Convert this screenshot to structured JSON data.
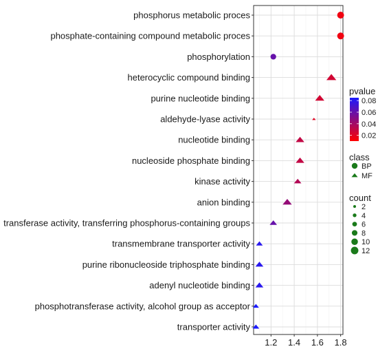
{
  "chart_data": {
    "type": "scatter",
    "title": "",
    "xlabel": "",
    "ylabel": "",
    "xlim": [
      1.05,
      1.82
    ],
    "x_ticks": [
      1.2,
      1.4,
      1.6,
      1.8
    ],
    "x_tick_labels": [
      "1.2",
      "1.4",
      "1.6",
      "1.8"
    ],
    "grid": true,
    "legend_position": "right",
    "categories": [
      "phosphorus metabolic proces",
      "phosphate-containing compound metabolic proces",
      "phosphorylation",
      "heterocyclic compound binding",
      "purine nucleotide binding",
      "aldehyde-lyase activity",
      "nucleotide binding",
      "nucleoside phosphate binding",
      "kinase activity",
      "anion binding",
      "transferase activity, transferring phosphorus-containing groups",
      "transmembrane transporter activity",
      "purine ribonucleoside triphosphate binding",
      "adenyl nucleotide binding",
      "phosphotransferase activity, alcohol group as acceptor",
      "transporter activity"
    ],
    "points": [
      {
        "term": "phosphorus metabolic proces",
        "x": 1.8,
        "pvalue": 0.015,
        "class": "BP",
        "count": 8
      },
      {
        "term": "phosphate-containing compound metabolic proces",
        "x": 1.8,
        "pvalue": 0.015,
        "class": "BP",
        "count": 8
      },
      {
        "term": "phosphorylation",
        "x": 1.22,
        "pvalue": 0.06,
        "class": "BP",
        "count": 6
      },
      {
        "term": "heterocyclic compound binding",
        "x": 1.72,
        "pvalue": 0.025,
        "class": "MF",
        "count": 12
      },
      {
        "term": "purine nucleotide binding",
        "x": 1.62,
        "pvalue": 0.025,
        "class": "MF",
        "count": 11
      },
      {
        "term": "aldehyde-lyase activity",
        "x": 1.57,
        "pvalue": 0.02,
        "class": "MF",
        "count": 2
      },
      {
        "term": "nucleotide binding",
        "x": 1.45,
        "pvalue": 0.03,
        "class": "MF",
        "count": 10
      },
      {
        "term": "nucleoside phosphate binding",
        "x": 1.45,
        "pvalue": 0.03,
        "class": "MF",
        "count": 10
      },
      {
        "term": "kinase activity",
        "x": 1.43,
        "pvalue": 0.035,
        "class": "MF",
        "count": 8
      },
      {
        "term": "anion binding",
        "x": 1.34,
        "pvalue": 0.045,
        "class": "MF",
        "count": 11
      },
      {
        "term": "transferase activity, transferring phosphorus-containing groups",
        "x": 1.22,
        "pvalue": 0.06,
        "class": "MF",
        "count": 8
      },
      {
        "term": "transmembrane transporter activity",
        "x": 1.1,
        "pvalue": 0.08,
        "class": "MF",
        "count": 7
      },
      {
        "term": "purine ribonucleoside triphosphate binding",
        "x": 1.1,
        "pvalue": 0.08,
        "class": "MF",
        "count": 9
      },
      {
        "term": "adenyl nucleotide binding",
        "x": 1.1,
        "pvalue": 0.08,
        "class": "MF",
        "count": 9
      },
      {
        "term": "phosphotransferase activity, alcohol group as acceptor",
        "x": 1.07,
        "pvalue": 0.085,
        "class": "MF",
        "count": 6
      },
      {
        "term": "transporter activity",
        "x": 1.07,
        "pvalue": 0.085,
        "class": "MF",
        "count": 7
      }
    ],
    "legend": {
      "pvalue": {
        "title": "pvalue",
        "range": [
          0.01,
          0.085
        ],
        "low_color": "#ff0000",
        "high_color": "#1a1aff",
        "breaks": [
          0.08,
          0.06,
          0.04,
          0.02
        ],
        "break_labels": [
          "0.08",
          "0.06",
          "0.04",
          "0.02"
        ]
      },
      "class": {
        "title": "class",
        "items": [
          {
            "label": "BP",
            "shape": "circle"
          },
          {
            "label": "MF",
            "shape": "triangle"
          }
        ],
        "color": "#1a7a1a"
      },
      "count": {
        "title": "count",
        "values": [
          2,
          4,
          6,
          8,
          10,
          12
        ],
        "labels": [
          "2",
          "4",
          "6",
          "8",
          "10",
          "12"
        ],
        "color": "#1a7a1a"
      }
    }
  }
}
